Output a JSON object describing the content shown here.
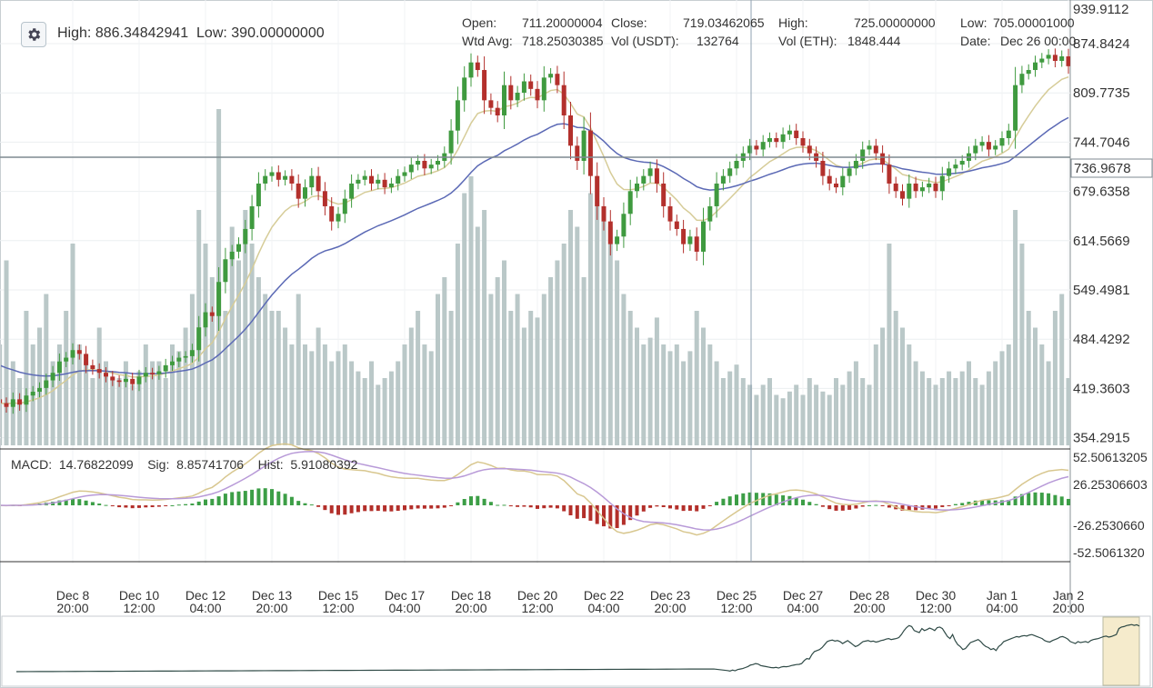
{
  "header": {
    "high_label": "High:",
    "high": "886.34842941",
    "low_label": "Low:",
    "low": "390.00000000",
    "settings_icon": "gear-icon"
  },
  "info": {
    "open_label": "Open:",
    "open": "711.20000004",
    "close_label": "Close:",
    "close": "719.03462065",
    "high_label": "High:",
    "high": "725.00000000",
    "low_label": "Low:",
    "low": "705.00001000",
    "wavg_label": "Wtd Avg:",
    "wavg": "718.25030385",
    "volq_label": "Vol (USDT):",
    "volq": "132764",
    "volb_label": "Vol (ETH):",
    "volb": "1848.444",
    "date_label": "Date:",
    "date": "Dec 26 00:00"
  },
  "macd_info": {
    "macd_label": "MACD:",
    "macd": "14.76822099",
    "sig_label": "Sig:",
    "sig": "8.85741706",
    "hist_label": "Hist:",
    "hist": "5.91080392"
  },
  "chart_data": {
    "type": "candlestick",
    "price_ticks": [
      "939.9112",
      "874.8424",
      "809.7735",
      "744.7046",
      "679.6358",
      "614.5669",
      "549.4981",
      "484.4292",
      "419.3603",
      "354.2915"
    ],
    "crosshair_price": "736.9678",
    "macd_ticks": [
      "52.50613205",
      "26.25306603",
      "-26.2530660",
      "-52.5061320"
    ],
    "x_ticks": [
      [
        "Dec 8",
        "20:00"
      ],
      [
        "Dec 10",
        "12:00"
      ],
      [
        "Dec 12",
        "04:00"
      ],
      [
        "Dec 13",
        "20:00"
      ],
      [
        "Dec 15",
        "12:00"
      ],
      [
        "Dec 17",
        "04:00"
      ],
      [
        "Dec 18",
        "20:00"
      ],
      [
        "Dec 20",
        "12:00"
      ],
      [
        "Dec 22",
        "04:00"
      ],
      [
        "Dec 23",
        "20:00"
      ],
      [
        "Dec 25",
        "12:00"
      ],
      [
        "Dec 27",
        "04:00"
      ],
      [
        "Dec 28",
        "20:00"
      ],
      [
        "Dec 30",
        "12:00"
      ],
      [
        "Jan 1",
        "04:00"
      ],
      [
        "Jan 2",
        "20:00"
      ]
    ],
    "interval": "4h",
    "closes": [
      400,
      395,
      405,
      398,
      410,
      415,
      420,
      430,
      440,
      455,
      460,
      470,
      465,
      450,
      445,
      440,
      435,
      430,
      428,
      432,
      425,
      435,
      440,
      438,
      442,
      450,
      455,
      460,
      462,
      470,
      500,
      520,
      515,
      560,
      590,
      600,
      610,
      630,
      660,
      690,
      700,
      705,
      695,
      700,
      690,
      670,
      685,
      700,
      680,
      660,
      640,
      650,
      670,
      690,
      695,
      700,
      690,
      695,
      685,
      690,
      700,
      705,
      715,
      720,
      710,
      715,
      720,
      730,
      760,
      800,
      830,
      850,
      840,
      800,
      790,
      780,
      820,
      800,
      810,
      825,
      815,
      800,
      830,
      835,
      820,
      780,
      740,
      720,
      760,
      700,
      660,
      640,
      610,
      620,
      650,
      680,
      690,
      700,
      710,
      690,
      660,
      640,
      630,
      610,
      620,
      600,
      640,
      660,
      690,
      700,
      710,
      720,
      730,
      740,
      735,
      745,
      750,
      745,
      755,
      760,
      750,
      740,
      730,
      720,
      700,
      690,
      685,
      700,
      710,
      720,
      735,
      740,
      730,
      715,
      690,
      680,
      670,
      690,
      680,
      685,
      690,
      680,
      700,
      710,
      715,
      720,
      730,
      740,
      745,
      735,
      740,
      750,
      760,
      820,
      835,
      840,
      850,
      855,
      860,
      852,
      858,
      845
    ],
    "volumes": [
      30,
      55,
      25,
      20,
      40,
      30,
      35,
      45,
      25,
      30,
      40,
      60,
      30,
      25,
      20,
      35,
      25,
      20,
      20,
      25,
      18,
      22,
      30,
      25,
      25,
      20,
      30,
      28,
      35,
      45,
      70,
      60,
      50,
      100,
      40,
      65,
      55,
      70,
      60,
      50,
      45,
      40,
      40,
      35,
      30,
      45,
      30,
      28,
      35,
      30,
      25,
      28,
      30,
      25,
      22,
      20,
      25,
      18,
      20,
      22,
      25,
      30,
      35,
      40,
      30,
      28,
      45,
      50,
      40,
      60,
      75,
      80,
      65,
      70,
      45,
      50,
      55,
      40,
      45,
      35,
      40,
      38,
      45,
      50,
      55,
      60,
      70,
      65,
      50,
      75,
      80,
      70,
      65,
      55,
      45,
      40,
      35,
      30,
      32,
      38,
      30,
      28,
      30,
      25,
      28,
      40,
      35,
      30,
      25,
      20,
      22,
      24,
      20,
      18,
      15,
      18,
      20,
      15,
      14,
      16,
      18,
      15,
      20,
      18,
      16,
      15,
      20,
      18,
      22,
      25,
      20,
      18,
      30,
      35,
      60,
      40,
      35,
      30,
      25,
      22,
      20,
      18,
      20,
      22,
      20,
      22,
      25,
      20,
      18,
      22,
      25,
      28,
      30,
      70,
      60,
      40,
      35,
      30,
      25,
      40,
      45,
      20
    ],
    "ma_series": [
      {
        "name": "fast",
        "color": "#d6cc98"
      },
      {
        "name": "slow",
        "color": "#5b69b5"
      }
    ],
    "colors": {
      "up": "#3f9a3f",
      "down": "#b3302c",
      "volume": "#bac8c8",
      "hist_up": "#3c9e46",
      "hist_down": "#b32f2a",
      "macd": "#d8c78f",
      "signal": "#b89ad8"
    }
  }
}
